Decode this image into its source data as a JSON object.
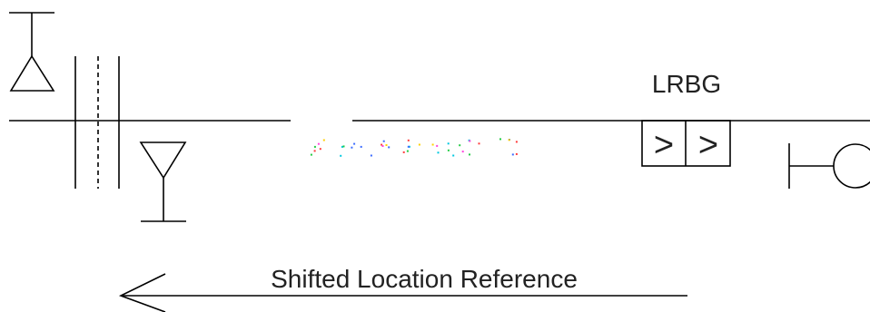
{
  "labels": {
    "lrbg": "LRBG",
    "shifted_reference": "Shifted Location Reference"
  },
  "balise_group_symbol": {
    "chevrons": [
      ">",
      ">"
    ]
  },
  "colors": {
    "line": "#000000",
    "text": "#222222",
    "dots": [
      "#ff3b3b",
      "#3b6bff",
      "#ffd000",
      "#22cc44",
      "#ff44dd",
      "#00c8e0"
    ]
  },
  "icons": [
    "signal-up-icon",
    "joint-icon",
    "signal-down-icon",
    "balise-group-icon",
    "buffer-stop-icon",
    "arrow-left-icon"
  ]
}
